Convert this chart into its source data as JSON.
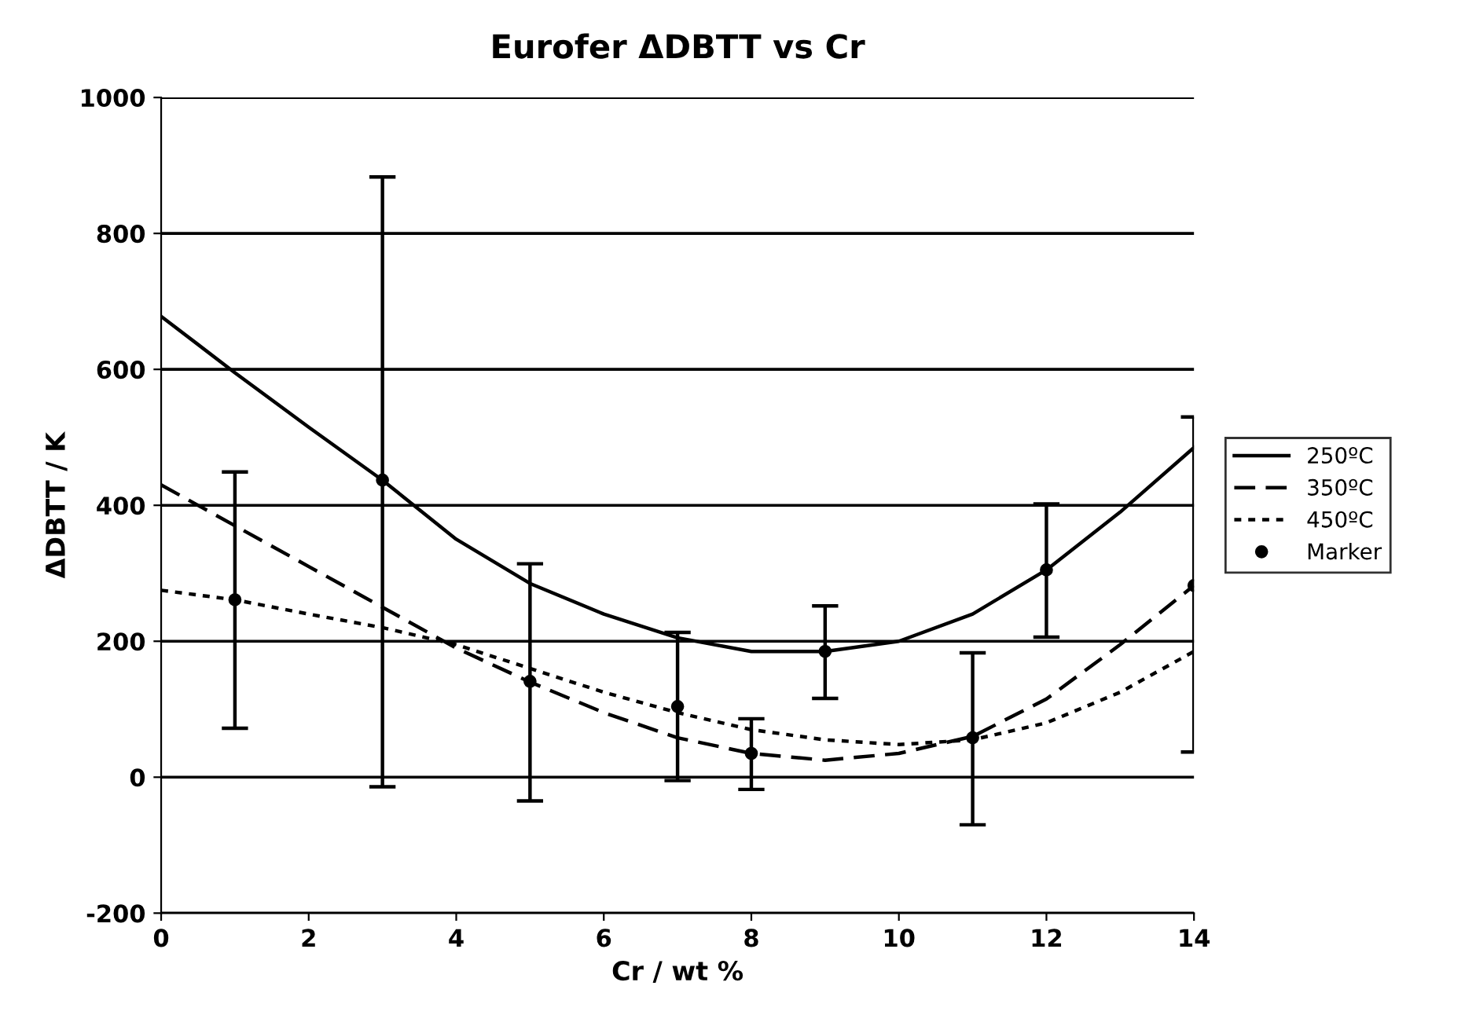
{
  "chart_data": {
    "type": "line",
    "title": "Eurofer ΔDBTT vs Cr",
    "xlabel": "Cr / wt %",
    "ylabel": "ΔDBTT / K",
    "x": [
      0,
      1,
      2,
      3,
      4,
      5,
      6,
      7,
      8,
      9,
      10,
      11,
      12,
      13,
      14
    ],
    "series": [
      {
        "name": "250ºC",
        "color": "#000000",
        "line_style": "solid",
        "values": [
          678,
          595,
          515,
          437,
          350,
          285,
          240,
          205,
          185,
          185,
          200,
          240,
          305,
          390,
          485
        ]
      },
      {
        "name": "350ºC",
        "color": "#000000",
        "line_style": "dashed",
        "values": [
          430,
          370,
          310,
          250,
          190,
          140,
          95,
          58,
          35,
          25,
          35,
          60,
          115,
          195,
          282
        ]
      },
      {
        "name": "450ºC",
        "color": "#000000",
        "line_style": "dotted",
        "values": [
          275,
          261,
          240,
          220,
          195,
          160,
          125,
          95,
          70,
          55,
          48,
          55,
          80,
          125,
          185
        ]
      },
      {
        "name": "Marker",
        "type": "scatter",
        "color": "#000000",
        "marker": "circle",
        "x": [
          1,
          3,
          5,
          7,
          8,
          9,
          11,
          12,
          14
        ],
        "values": [
          261,
          437,
          141,
          104,
          35,
          185,
          58,
          305,
          282
        ],
        "errors": [
          [
            72,
            449
          ],
          [
            -14,
            883
          ],
          [
            -35,
            314
          ],
          [
            -5,
            213
          ],
          [
            -18,
            86
          ],
          [
            116,
            252
          ],
          [
            -70,
            183
          ],
          [
            206,
            402
          ],
          [
            37,
            530
          ]
        ]
      }
    ],
    "xlim": [
      0,
      14
    ],
    "xticks": [
      0,
      2,
      4,
      6,
      8,
      10,
      12,
      14
    ],
    "ylim": [
      -200,
      1000
    ],
    "yticks": [
      -200,
      0,
      200,
      400,
      600,
      800,
      1000
    ],
    "grid": "y",
    "legend": "right"
  }
}
